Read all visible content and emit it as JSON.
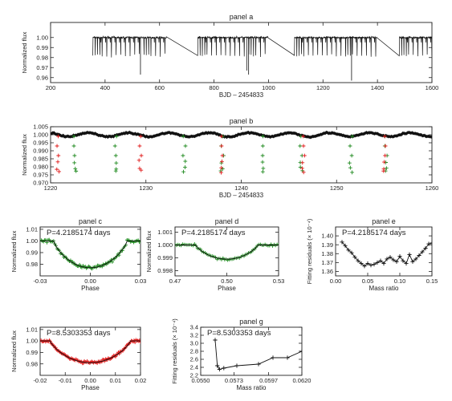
{
  "colors": {
    "black": "#111111",
    "green": "#1f8a1f",
    "red": "#e01b1b",
    "axis": "#222222"
  },
  "chart_data": [
    {
      "id": "a",
      "type": "line",
      "title": "panel a",
      "xlabel": "BJD – 2454833",
      "ylabel": "Normalized flux",
      "xlim": [
        200,
        1600
      ],
      "ylim": [
        0.955,
        1.015
      ],
      "xticks": [
        200,
        400,
        600,
        800,
        1000,
        1200,
        1400,
        1600
      ],
      "yticks": [
        0.96,
        0.97,
        0.98,
        0.99,
        1.0
      ],
      "segments": [
        [
          355,
          625
        ],
        [
          740,
          1000
        ],
        [
          1095,
          1400
        ],
        [
          1480,
          1600
        ]
      ],
      "baseline": 1.0,
      "primary_depth": 0.982,
      "secondary_depth": 0.995,
      "outliers": [
        [
          530,
          0.963
        ],
        [
          920,
          0.967
        ],
        [
          927,
          0.963
        ],
        [
          1305,
          0.957
        ]
      ]
    },
    {
      "id": "b",
      "type": "scatter",
      "title": "panel b",
      "xlabel": "BJD – 2454833",
      "ylabel": "Normalized flux",
      "xlim": [
        1220,
        1260
      ],
      "ylim": [
        0.97,
        1.005
      ],
      "xticks": [
        1220,
        1230,
        1240,
        1250,
        1260
      ],
      "yticks": [
        0.97,
        0.975,
        0.98,
        0.985,
        0.99,
        0.995,
        1.0,
        1.005
      ],
      "series": [
        {
          "color": "black",
          "marker": "diamond",
          "baseline": 1.0
        },
        {
          "color": "green",
          "marker": "plus",
          "epochs": [
            1222.55,
            1226.77,
            1234.0,
            1238.0,
            1242.2,
            1246.3,
            1251.5,
            1255.2
          ]
        },
        {
          "color": "red",
          "marker": "plus",
          "epochs": [
            1220.8,
            1229.4,
            1238.0,
            1246.5,
            1255.0
          ]
        }
      ]
    },
    {
      "id": "c",
      "type": "scatter",
      "title": "panel c",
      "annotation": "P=4.2185174 days",
      "annotation_color": "green",
      "xlabel": "Phase",
      "ylabel": "Normalized flux",
      "xlim": [
        -0.03,
        0.03
      ],
      "ylim": [
        0.97,
        1.012
      ],
      "xticks": [
        -0.03,
        0.0,
        0.03
      ],
      "yticks": [
        0.98,
        0.99,
        1.0,
        1.01
      ],
      "depth": 0.977
    },
    {
      "id": "d",
      "type": "scatter",
      "title": "panel d",
      "annotation": "P=4.2185174 days",
      "annotation_color": "green",
      "xlabel": "Phase",
      "ylabel": "Normalized flux",
      "xlim": [
        0.47,
        0.53
      ],
      "ylim": [
        0.9976,
        1.0014
      ],
      "xticks": [
        0.47,
        0.5,
        0.53
      ],
      "yticks": [
        0.998,
        0.999,
        1.0,
        1.001
      ],
      "depth": 0.9989
    },
    {
      "id": "e",
      "type": "line",
      "title": "panel e",
      "annotation": "P=4.2185174 days",
      "annotation_color": "green",
      "xlabel": "Mass ratio",
      "ylabel": "Fitting residuals (× 10⁻⁴)",
      "xlim": [
        0.0,
        0.15
      ],
      "ylim": [
        1.355,
        1.41
      ],
      "xticks": [
        0.0,
        0.05,
        0.1,
        0.15
      ],
      "yticks": [
        1.36,
        1.37,
        1.38,
        1.39,
        1.4
      ],
      "x": [
        0.01,
        0.015,
        0.02,
        0.025,
        0.03,
        0.035,
        0.04,
        0.045,
        0.05,
        0.055,
        0.06,
        0.065,
        0.07,
        0.075,
        0.08,
        0.085,
        0.09,
        0.095,
        0.1,
        0.105,
        0.11,
        0.115,
        0.12,
        0.125,
        0.13,
        0.135,
        0.14,
        0.145,
        0.15
      ],
      "y": [
        1.393,
        1.389,
        1.384,
        1.381,
        1.376,
        1.372,
        1.369,
        1.366,
        1.369,
        1.367,
        1.368,
        1.37,
        1.372,
        1.369,
        1.374,
        1.376,
        1.373,
        1.371,
        1.377,
        1.372,
        1.369,
        1.379,
        1.371,
        1.374,
        1.378,
        1.382,
        1.386,
        1.391,
        1.392
      ]
    },
    {
      "id": "f",
      "type": "scatter",
      "title": "",
      "annotation": "P=8.5303353 days",
      "annotation_color": "red",
      "xlabel": "Phase",
      "ylabel": "Normalized flux",
      "xlim": [
        -0.02,
        0.02
      ],
      "ylim": [
        0.97,
        1.012
      ],
      "xticks": [
        -0.02,
        -0.01,
        0.0,
        0.01,
        0.02
      ],
      "yticks": [
        0.98,
        0.99,
        1.0,
        1.01
      ],
      "depth": 0.981
    },
    {
      "id": "g",
      "type": "line",
      "title": "panel g",
      "annotation": "P=8.5303353 days",
      "annotation_color": "red",
      "xlabel": "Mass ratio",
      "ylabel": "Fitting residuals (× 10⁻⁴)",
      "xlim": [
        0.055,
        0.062
      ],
      "ylim": [
        2.2,
        3.4
      ],
      "xticks": [
        0.055,
        0.0573,
        0.0597,
        0.062
      ],
      "xtick_labels": [
        "0.0550",
        "0.0573",
        "0.0597",
        "0.0620"
      ],
      "yticks": [
        2.2,
        2.4,
        2.6,
        2.8,
        3.0,
        3.2,
        3.4
      ],
      "x": [
        0.056,
        0.05615,
        0.0563,
        0.0566,
        0.0575,
        0.059,
        0.06,
        0.061,
        0.062
      ],
      "y": [
        3.08,
        2.44,
        2.35,
        2.38,
        2.44,
        2.48,
        2.64,
        2.64,
        2.8
      ]
    }
  ]
}
